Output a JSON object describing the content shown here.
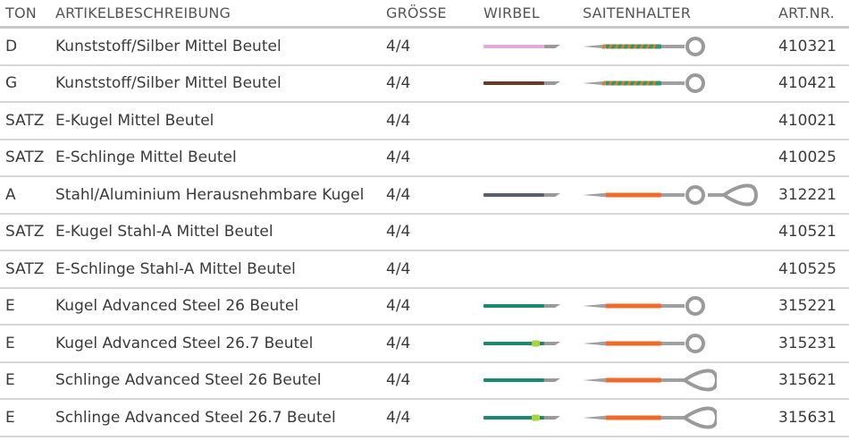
{
  "headers": {
    "ton": "TON",
    "description": "ARTIKELBESCHREIBUNG",
    "size": "GRÖSSE",
    "wirbel": "WIRBEL",
    "saitenhalter": "SAITENHALTER",
    "artnr": "ART.NR."
  },
  "rows": [
    {
      "ton": "D",
      "description": "Kunststoff/Silber Mittel Beutel",
      "size": "4/4",
      "artnr": "410321",
      "wirbel": {
        "color": "#e8a6d6",
        "dot": null
      },
      "halter": {
        "style": "stripe",
        "color": "#2a9a6e",
        "stripe": "#e07a2a",
        "ends": [
          "ball"
        ]
      }
    },
    {
      "ton": "G",
      "description": "Kunststoff/Silber Mittel Beutel",
      "size": "4/4",
      "artnr": "410421",
      "wirbel": {
        "color": "#6e3a26",
        "dot": null
      },
      "halter": {
        "style": "stripe",
        "color": "#2a9a6e",
        "stripe": "#e07a2a",
        "ends": [
          "ball"
        ]
      }
    },
    {
      "ton": "SATZ",
      "description": "E-Kugel Mittel Beutel",
      "size": "4/4",
      "artnr": "410021",
      "wirbel": null,
      "halter": null
    },
    {
      "ton": "SATZ",
      "description": "E-Schlinge Mittel Beutel",
      "size": "4/4",
      "artnr": "410025",
      "wirbel": null,
      "halter": null
    },
    {
      "ton": "A",
      "description": "Stahl/Aluminium Herausnehmbare Kugel",
      "size": "4/4",
      "artnr": "312221",
      "wirbel": {
        "color": "#5a5f6e",
        "dot": null
      },
      "halter": {
        "style": "solid",
        "color": "#ef6a2a",
        "stripe": null,
        "ends": [
          "ball",
          "loop"
        ]
      }
    },
    {
      "ton": "SATZ",
      "description": "E-Kugel Stahl-A Mittel Beutel",
      "size": "4/4",
      "artnr": "410521",
      "wirbel": null,
      "halter": null
    },
    {
      "ton": "SATZ",
      "description": "E-Schlinge Stahl-A Mittel Beutel",
      "size": "4/4",
      "artnr": "410525",
      "wirbel": null,
      "halter": null
    },
    {
      "ton": "E",
      "description": "Kugel Advanced Steel 26 Beutel",
      "size": "4/4",
      "artnr": "315221",
      "wirbel": {
        "color": "#1a8a70",
        "dot": null
      },
      "halter": {
        "style": "solid",
        "color": "#ef6a2a",
        "stripe": null,
        "ends": [
          "ball"
        ]
      }
    },
    {
      "ton": "E",
      "description": "Kugel Advanced Steel 26.7 Beutel",
      "size": "4/4",
      "artnr": "315231",
      "wirbel": {
        "color": "#1a8a70",
        "dot": "#a6d43a"
      },
      "halter": {
        "style": "solid",
        "color": "#ef6a2a",
        "stripe": null,
        "ends": [
          "ball"
        ]
      }
    },
    {
      "ton": "E",
      "description": "Schlinge Advanced Steel 26 Beutel",
      "size": "4/4",
      "artnr": "315621",
      "wirbel": {
        "color": "#1a8a70",
        "dot": null
      },
      "halter": {
        "style": "solid",
        "color": "#ef6a2a",
        "stripe": null,
        "ends": [
          "loop"
        ]
      }
    },
    {
      "ton": "E",
      "description": "Schlinge Advanced Steel 26.7 Beutel",
      "size": "4/4",
      "artnr": "315631",
      "wirbel": {
        "color": "#1a8a70",
        "dot": "#a6d43a"
      },
      "halter": {
        "style": "solid",
        "color": "#ef6a2a",
        "stripe": null,
        "ends": [
          "loop"
        ]
      }
    }
  ]
}
